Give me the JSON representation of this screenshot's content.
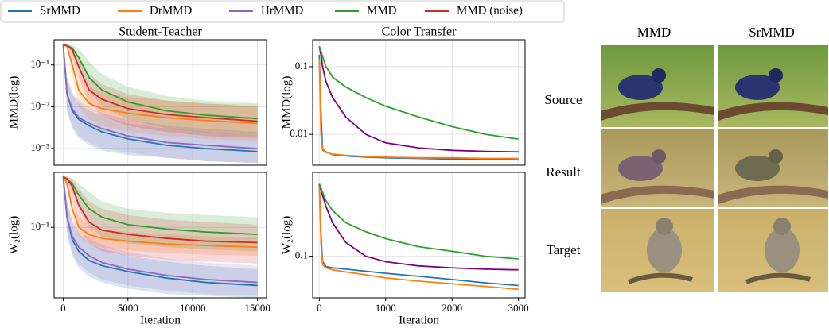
{
  "chart_data": [
    {
      "type": "line",
      "title": "Student-Teacher",
      "ylabel": "MMD(log)",
      "ylog": true,
      "grid": true,
      "legend": "top",
      "x": [
        0,
        300,
        700,
        1200,
        2000,
        3000,
        5000,
        8000,
        11000,
        15000
      ],
      "xlim": [
        -700,
        15700
      ],
      "xticks": [
        0,
        5000,
        10000,
        15000
      ],
      "ylim": [
        0.0004,
        0.4
      ],
      "yticks": [
        {
          "value": 0.001,
          "label": "10⁻³"
        },
        {
          "value": 0.01,
          "label": "10⁻²"
        },
        {
          "value": 0.1,
          "label": "10⁻¹"
        }
      ],
      "series": [
        {
          "name": "SrMMD",
          "color": "#1f77b4",
          "values": [
            0.3,
            0.02,
            0.008,
            0.005,
            0.0035,
            0.0025,
            0.0017,
            0.0012,
            0.001,
            0.00085
          ],
          "lower": [
            0.3,
            0.008,
            0.003,
            0.0018,
            0.0012,
            0.0009,
            0.0007,
            0.0006,
            0.0005,
            0.00045
          ],
          "upper": [
            0.3,
            0.05,
            0.02,
            0.012,
            0.008,
            0.006,
            0.004,
            0.003,
            0.0025,
            0.002
          ]
        },
        {
          "name": "DrMMD",
          "color": "#ff7f0e",
          "values": [
            0.3,
            0.28,
            0.1,
            0.025,
            0.012,
            0.009,
            0.007,
            0.0055,
            0.0047,
            0.004
          ],
          "lower": [
            0.3,
            0.25,
            0.05,
            0.01,
            0.005,
            0.0035,
            0.0025,
            0.002,
            0.0017,
            0.0015
          ],
          "upper": [
            0.3,
            0.3,
            0.2,
            0.06,
            0.03,
            0.022,
            0.017,
            0.014,
            0.012,
            0.011
          ]
        },
        {
          "name": "HrMMD",
          "color": "#9467bd",
          "values": [
            0.3,
            0.02,
            0.009,
            0.0055,
            0.004,
            0.003,
            0.002,
            0.0014,
            0.0012,
            0.001
          ],
          "lower": [
            0.3,
            0.008,
            0.0035,
            0.002,
            0.0014,
            0.001,
            0.0008,
            0.0006,
            0.0005,
            0.00045
          ],
          "upper": [
            0.3,
            0.05,
            0.022,
            0.014,
            0.01,
            0.007,
            0.005,
            0.0035,
            0.003,
            0.0025
          ]
        },
        {
          "name": "MMD",
          "color": "#2ca02c",
          "values": [
            0.3,
            0.29,
            0.25,
            0.15,
            0.05,
            0.025,
            0.013,
            0.008,
            0.0063,
            0.0052
          ],
          "lower": [
            0.3,
            0.28,
            0.2,
            0.1,
            0.025,
            0.01,
            0.005,
            0.003,
            0.0024,
            0.002
          ],
          "upper": [
            0.3,
            0.3,
            0.3,
            0.25,
            0.12,
            0.06,
            0.03,
            0.018,
            0.014,
            0.012
          ]
        },
        {
          "name": "MMD (noise)",
          "color": "#d62728",
          "values": [
            0.3,
            0.29,
            0.23,
            0.09,
            0.025,
            0.015,
            0.009,
            0.0065,
            0.0055,
            0.0045
          ],
          "lower": [
            0.3,
            0.27,
            0.17,
            0.05,
            0.012,
            0.006,
            0.0035,
            0.0025,
            0.002,
            0.0018
          ],
          "upper": [
            0.3,
            0.3,
            0.29,
            0.16,
            0.06,
            0.035,
            0.02,
            0.014,
            0.012,
            0.01
          ]
        }
      ]
    },
    {
      "type": "line",
      "title": "Color Transfer",
      "ylabel": "MMD(log)",
      "ylog": true,
      "grid": true,
      "x": [
        0,
        25,
        50,
        100,
        200,
        400,
        700,
        1000,
        1500,
        2000,
        2500,
        3000
      ],
      "xlim": [
        -100,
        3100
      ],
      "xticks": [
        0,
        1000,
        2000,
        3000
      ],
      "ylim": [
        0.0035,
        0.25
      ],
      "yticks": [
        0.01,
        0.1
      ],
      "series": [
        {
          "name": "SrMMD",
          "color": "#1f77b4",
          "values": [
            0.15,
            0.02,
            0.006,
            0.0055,
            0.005,
            0.0048,
            0.0046,
            0.0045,
            0.0044,
            0.0043,
            0.0043,
            0.0042
          ]
        },
        {
          "name": "DrMMD",
          "color": "#ff7f0e",
          "values": [
            0.13,
            0.01,
            0.0058,
            0.0054,
            0.0051,
            0.0049,
            0.0047,
            0.0046,
            0.0045,
            0.0045,
            0.0044,
            0.0044
          ]
        },
        {
          "name": "HrMMD",
          "color": "#800080",
          "values": [
            0.2,
            0.15,
            0.1,
            0.06,
            0.035,
            0.018,
            0.01,
            0.0075,
            0.0063,
            0.0058,
            0.0056,
            0.0055
          ]
        },
        {
          "name": "MMD",
          "color": "#2ca02c",
          "values": [
            0.2,
            0.17,
            0.14,
            0.1,
            0.07,
            0.05,
            0.035,
            0.026,
            0.018,
            0.013,
            0.01,
            0.0085
          ]
        }
      ]
    },
    {
      "type": "line",
      "xlabel": "Iteration",
      "ylabel": "W₂(log)",
      "ylog": true,
      "grid": true,
      "x": [
        0,
        300,
        700,
        1200,
        2000,
        3000,
        5000,
        8000,
        11000,
        15000
      ],
      "xlim": [
        -700,
        15700
      ],
      "xticks": [
        0,
        5000,
        10000,
        15000
      ],
      "ylim": [
        0.028,
        0.27
      ],
      "yticks": [
        {
          "value": 0.1,
          "label": "10⁻¹"
        }
      ],
      "series": [
        {
          "name": "SrMMD",
          "color": "#1f77b4",
          "values": [
            0.25,
            0.12,
            0.08,
            0.065,
            0.055,
            0.05,
            0.045,
            0.04,
            0.037,
            0.035
          ],
          "lower": [
            0.25,
            0.09,
            0.06,
            0.048,
            0.041,
            0.037,
            0.033,
            0.03,
            0.029,
            0.028
          ],
          "upper": [
            0.25,
            0.16,
            0.11,
            0.09,
            0.075,
            0.068,
            0.06,
            0.054,
            0.05,
            0.047
          ]
        },
        {
          "name": "DrMMD",
          "color": "#ff7f0e",
          "values": [
            0.25,
            0.22,
            0.14,
            0.1,
            0.088,
            0.082,
            0.078,
            0.074,
            0.072,
            0.07
          ],
          "lower": [
            0.25,
            0.2,
            0.12,
            0.085,
            0.075,
            0.07,
            0.066,
            0.063,
            0.061,
            0.06
          ],
          "upper": [
            0.25,
            0.24,
            0.17,
            0.12,
            0.105,
            0.097,
            0.092,
            0.088,
            0.085,
            0.083
          ]
        },
        {
          "name": "HrMMD",
          "color": "#9467bd",
          "values": [
            0.25,
            0.12,
            0.085,
            0.07,
            0.06,
            0.053,
            0.047,
            0.042,
            0.039,
            0.037
          ],
          "lower": [
            0.25,
            0.09,
            0.063,
            0.052,
            0.044,
            0.039,
            0.035,
            0.032,
            0.03,
            0.029
          ],
          "upper": [
            0.25,
            0.16,
            0.115,
            0.095,
            0.082,
            0.073,
            0.064,
            0.057,
            0.053,
            0.05
          ]
        },
        {
          "name": "MMD",
          "color": "#2ca02c",
          "values": [
            0.25,
            0.24,
            0.22,
            0.18,
            0.14,
            0.12,
            0.105,
            0.097,
            0.092,
            0.088
          ],
          "lower": [
            0.25,
            0.23,
            0.19,
            0.14,
            0.1,
            0.085,
            0.075,
            0.07,
            0.067,
            0.065
          ],
          "upper": [
            0.25,
            0.25,
            0.24,
            0.22,
            0.19,
            0.16,
            0.14,
            0.13,
            0.125,
            0.12
          ]
        },
        {
          "name": "MMD (noise)",
          "color": "#d62728",
          "values": [
            0.25,
            0.24,
            0.21,
            0.15,
            0.11,
            0.095,
            0.088,
            0.082,
            0.078,
            0.076
          ],
          "lower": [
            0.25,
            0.22,
            0.17,
            0.1,
            0.075,
            0.065,
            0.06,
            0.056,
            0.054,
            0.052
          ],
          "upper": [
            0.25,
            0.25,
            0.24,
            0.2,
            0.16,
            0.14,
            0.125,
            0.115,
            0.11,
            0.105
          ]
        }
      ]
    },
    {
      "type": "line",
      "xlabel": "Iteration",
      "ylabel": "W₂(log)",
      "ylog": true,
      "grid": true,
      "x": [
        0,
        25,
        50,
        100,
        200,
        400,
        700,
        1000,
        1500,
        2000,
        2500,
        3000
      ],
      "xlim": [
        -100,
        3100
      ],
      "xticks": [
        0,
        1000,
        2000,
        3000
      ],
      "ylim": [
        0.045,
        0.5
      ],
      "yticks": [
        0.1
      ],
      "series": [
        {
          "name": "SrMMD",
          "color": "#1f77b4",
          "values": [
            0.4,
            0.15,
            0.09,
            0.082,
            0.08,
            0.078,
            0.075,
            0.072,
            0.068,
            0.064,
            0.06,
            0.057
          ]
        },
        {
          "name": "DrMMD",
          "color": "#ff7f0e",
          "values": [
            0.4,
            0.13,
            0.085,
            0.08,
            0.077,
            0.074,
            0.07,
            0.066,
            0.062,
            0.059,
            0.056,
            0.053
          ]
        },
        {
          "name": "HrMMD",
          "color": "#800080",
          "values": [
            0.4,
            0.36,
            0.32,
            0.26,
            0.19,
            0.13,
            0.1,
            0.09,
            0.083,
            0.08,
            0.078,
            0.077
          ]
        },
        {
          "name": "MMD",
          "color": "#2ca02c",
          "values": [
            0.4,
            0.37,
            0.34,
            0.29,
            0.24,
            0.19,
            0.16,
            0.14,
            0.12,
            0.11,
            0.1,
            0.095
          ]
        }
      ]
    }
  ],
  "image_panel": {
    "columns": [
      "MMD",
      "SrMMD"
    ],
    "rows": [
      "Source",
      "Result",
      "Target"
    ]
  }
}
